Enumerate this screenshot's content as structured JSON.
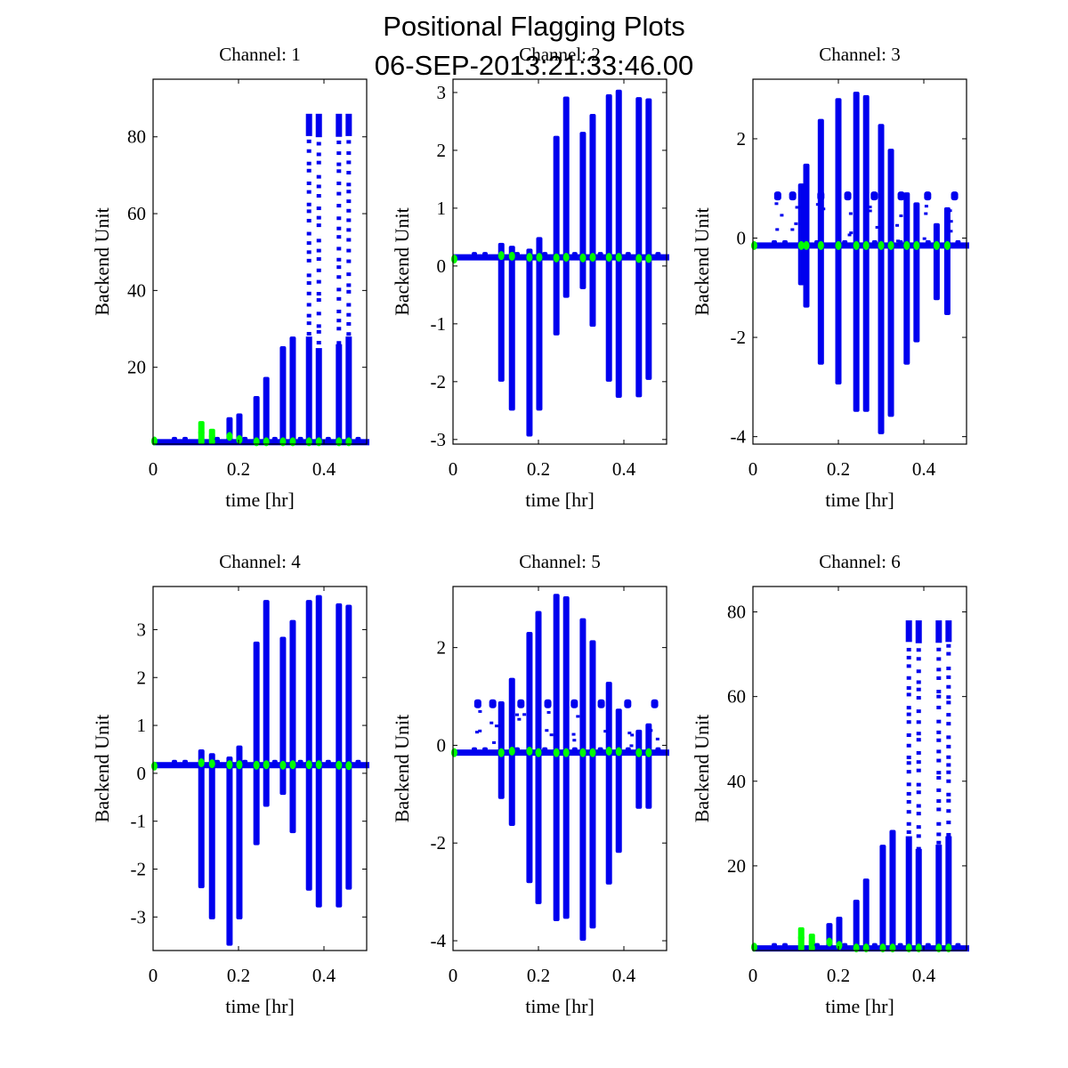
{
  "figure": {
    "title_line1": "Positional Flagging Plots",
    "title_line2": "06-SEP-2013:21:33:46.00"
  },
  "colors": {
    "data": "#0000ee",
    "flagged": "#00ff00",
    "axes": "#000000"
  },
  "chart_data": [
    {
      "type": "scatter",
      "title": "Channel: 1",
      "xlabel": "time [hr]",
      "ylabel": "Backend Unit",
      "xlim": [
        0,
        0.5
      ],
      "ylim": [
        0,
        95
      ],
      "xticks": [
        0,
        0.2,
        0.4
      ],
      "xtick_labels": [
        "0",
        "0.2",
        "0.4"
      ],
      "yticks": [
        20,
        40,
        60,
        80
      ],
      "ytick_labels": [
        "20",
        "40",
        "60",
        "80"
      ],
      "baseline": 0.5,
      "bursts": [
        {
          "t": 0.113,
          "min": 0,
          "max": 6,
          "flagged": true
        },
        {
          "t": 0.138,
          "min": 0,
          "max": 4,
          "flagged": true
        },
        {
          "t": 0.179,
          "min": 0,
          "max": 7
        },
        {
          "t": 0.202,
          "min": 0,
          "max": 8
        },
        {
          "t": 0.242,
          "min": 0,
          "max": 12.5
        },
        {
          "t": 0.265,
          "min": 0,
          "max": 17.5
        },
        {
          "t": 0.304,
          "min": 0,
          "max": 25.5
        },
        {
          "t": 0.327,
          "min": 0,
          "max": 28
        },
        {
          "t": 0.365,
          "min": 0,
          "max": 86,
          "sparse_from": 28
        },
        {
          "t": 0.388,
          "min": 0,
          "max": 86,
          "sparse_from": 25
        },
        {
          "t": 0.435,
          "min": 0,
          "max": 86,
          "sparse_from": 26
        },
        {
          "t": 0.458,
          "min": 0,
          "max": 86,
          "sparse_from": 28
        }
      ],
      "flag_markers": [
        {
          "t": 0.003,
          "y": 0.8
        },
        {
          "t": 0.113,
          "y": 3
        },
        {
          "t": 0.138,
          "y": 2
        },
        {
          "t": 0.179,
          "y": 2
        },
        {
          "t": 0.202,
          "y": 1.2
        },
        {
          "t": 0.242,
          "y": 0.6
        },
        {
          "t": 0.265,
          "y": 0.6
        },
        {
          "t": 0.304,
          "y": 0.6
        },
        {
          "t": 0.327,
          "y": 0.6
        },
        {
          "t": 0.365,
          "y": 0.6
        },
        {
          "t": 0.388,
          "y": 0.6
        },
        {
          "t": 0.435,
          "y": 0.6
        },
        {
          "t": 0.458,
          "y": 0.6
        }
      ]
    },
    {
      "type": "scatter",
      "title": "Channel: 2",
      "xlabel": "time [hr]",
      "ylabel": "Backend Unit",
      "xlim": [
        0,
        0.5
      ],
      "ylim": [
        -3.08,
        3.23
      ],
      "xticks": [
        0,
        0.2,
        0.4
      ],
      "xtick_labels": [
        "0",
        "0.2",
        "0.4"
      ],
      "yticks": [
        -3,
        -2,
        -1,
        0,
        1,
        2,
        3
      ],
      "ytick_labels": [
        "-3",
        "-2",
        "-1",
        "0",
        "1",
        "2",
        "3"
      ],
      "baseline": 0.15,
      "bursts": [
        {
          "t": 0.113,
          "min": -2.0,
          "max": 0.4
        },
        {
          "t": 0.138,
          "min": -2.5,
          "max": 0.35
        },
        {
          "t": 0.179,
          "min": -2.95,
          "max": 0.3
        },
        {
          "t": 0.202,
          "min": -2.5,
          "max": 0.5
        },
        {
          "t": 0.242,
          "min": -1.2,
          "max": 2.25
        },
        {
          "t": 0.265,
          "min": -0.55,
          "max": 2.93
        },
        {
          "t": 0.304,
          "min": -0.4,
          "max": 2.32
        },
        {
          "t": 0.327,
          "min": -1.05,
          "max": 2.63
        },
        {
          "t": 0.365,
          "min": -2.0,
          "max": 2.97
        },
        {
          "t": 0.388,
          "min": -2.28,
          "max": 3.05
        },
        {
          "t": 0.435,
          "min": -2.27,
          "max": 2.92
        },
        {
          "t": 0.458,
          "min": -1.97,
          "max": 2.9
        }
      ],
      "flag_markers": [
        {
          "t": 0.003,
          "y": 0.12
        },
        {
          "t": 0.113,
          "y": 0.18
        },
        {
          "t": 0.138,
          "y": 0.17
        },
        {
          "t": 0.179,
          "y": 0.15
        },
        {
          "t": 0.202,
          "y": 0.15
        },
        {
          "t": 0.242,
          "y": 0.14
        },
        {
          "t": 0.265,
          "y": 0.15
        },
        {
          "t": 0.304,
          "y": 0.14
        },
        {
          "t": 0.327,
          "y": 0.15
        },
        {
          "t": 0.365,
          "y": 0.15
        },
        {
          "t": 0.388,
          "y": 0.15
        },
        {
          "t": 0.435,
          "y": 0.13
        },
        {
          "t": 0.458,
          "y": 0.13
        }
      ]
    },
    {
      "type": "scatter",
      "title": "Channel: 3",
      "xlabel": "time [hr]",
      "ylabel": "Backend Unit",
      "xlim": [
        0,
        0.5
      ],
      "ylim": [
        -4.15,
        3.2
      ],
      "xticks": [
        0,
        0.2,
        0.4
      ],
      "xtick_labels": [
        "0",
        "0.2",
        "0.4"
      ],
      "yticks": [
        -4,
        -2,
        0,
        2
      ],
      "ytick_labels": [
        "-4",
        "-2",
        "0",
        "2"
      ],
      "baseline": -0.15,
      "side_clusters_y": 0.85,
      "side_cluster_times": [
        0.058,
        0.093,
        0.159,
        0.222,
        0.284,
        0.347,
        0.409,
        0.472
      ],
      "bursts": [
        {
          "t": 0.113,
          "min": -0.95,
          "max": 1.1
        },
        {
          "t": 0.125,
          "min": -1.4,
          "max": 1.5
        },
        {
          "t": 0.159,
          "min": -2.55,
          "max": 2.4
        },
        {
          "t": 0.2,
          "min": -2.95,
          "max": 2.82
        },
        {
          "t": 0.242,
          "min": -3.5,
          "max": 2.95
        },
        {
          "t": 0.265,
          "min": -3.5,
          "max": 2.88
        },
        {
          "t": 0.3,
          "min": -3.95,
          "max": 2.3
        },
        {
          "t": 0.323,
          "min": -3.6,
          "max": 1.8
        },
        {
          "t": 0.36,
          "min": -2.55,
          "max": 0.92
        },
        {
          "t": 0.383,
          "min": -2.1,
          "max": 0.72
        },
        {
          "t": 0.43,
          "min": -1.25,
          "max": 0.3
        },
        {
          "t": 0.455,
          "min": -1.55,
          "max": 0.62
        }
      ],
      "flag_markers": [
        {
          "t": 0.003,
          "y": -0.15
        },
        {
          "t": 0.113,
          "y": -0.15
        },
        {
          "t": 0.125,
          "y": -0.15
        },
        {
          "t": 0.159,
          "y": -0.15
        },
        {
          "t": 0.2,
          "y": -0.15
        },
        {
          "t": 0.242,
          "y": -0.15
        },
        {
          "t": 0.265,
          "y": -0.15
        },
        {
          "t": 0.3,
          "y": -0.15
        },
        {
          "t": 0.323,
          "y": -0.15
        },
        {
          "t": 0.36,
          "y": -0.15
        },
        {
          "t": 0.383,
          "y": -0.15
        },
        {
          "t": 0.43,
          "y": -0.15
        },
        {
          "t": 0.455,
          "y": -0.15
        }
      ]
    },
    {
      "type": "scatter",
      "title": "Channel: 4",
      "xlabel": "time [hr]",
      "ylabel": "Backend Unit",
      "xlim": [
        0,
        0.5
      ],
      "ylim": [
        -3.7,
        3.9
      ],
      "xticks": [
        0,
        0.2,
        0.4
      ],
      "xtick_labels": [
        "0",
        "0.2",
        "0.4"
      ],
      "yticks": [
        -3,
        -2,
        -1,
        0,
        1,
        2,
        3
      ],
      "ytick_labels": [
        "-3",
        "-2",
        "-1",
        "0",
        "1",
        "2",
        "3"
      ],
      "baseline": 0.17,
      "bursts": [
        {
          "t": 0.113,
          "min": -2.4,
          "max": 0.5
        },
        {
          "t": 0.138,
          "min": -3.05,
          "max": 0.42
        },
        {
          "t": 0.179,
          "min": -3.6,
          "max": 0.35
        },
        {
          "t": 0.202,
          "min": -3.05,
          "max": 0.58
        },
        {
          "t": 0.242,
          "min": -1.5,
          "max": 2.75
        },
        {
          "t": 0.265,
          "min": -0.7,
          "max": 3.62
        },
        {
          "t": 0.304,
          "min": -0.45,
          "max": 2.85
        },
        {
          "t": 0.327,
          "min": -1.25,
          "max": 3.2
        },
        {
          "t": 0.365,
          "min": -2.45,
          "max": 3.62
        },
        {
          "t": 0.388,
          "min": -2.8,
          "max": 3.72
        },
        {
          "t": 0.435,
          "min": -2.8,
          "max": 3.55
        },
        {
          "t": 0.458,
          "min": -2.43,
          "max": 3.52
        }
      ],
      "flag_markers": [
        {
          "t": 0.003,
          "y": 0.15
        },
        {
          "t": 0.113,
          "y": 0.22
        },
        {
          "t": 0.138,
          "y": 0.2
        },
        {
          "t": 0.179,
          "y": 0.18
        },
        {
          "t": 0.202,
          "y": 0.18
        },
        {
          "t": 0.242,
          "y": 0.17
        },
        {
          "t": 0.265,
          "y": 0.18
        },
        {
          "t": 0.304,
          "y": 0.17
        },
        {
          "t": 0.327,
          "y": 0.18
        },
        {
          "t": 0.365,
          "y": 0.18
        },
        {
          "t": 0.388,
          "y": 0.18
        },
        {
          "t": 0.435,
          "y": 0.17
        },
        {
          "t": 0.458,
          "y": 0.16
        }
      ]
    },
    {
      "type": "scatter",
      "title": "Channel: 5",
      "xlabel": "time [hr]",
      "ylabel": "Backend Unit",
      "xlim": [
        0,
        0.5
      ],
      "ylim": [
        -4.2,
        3.25
      ],
      "xticks": [
        0,
        0.2,
        0.4
      ],
      "xtick_labels": [
        "0",
        "0.2",
        "0.4"
      ],
      "yticks": [
        -4,
        -2,
        0,
        2
      ],
      "ytick_labels": [
        "-4",
        "-2",
        "0",
        "2"
      ],
      "baseline": -0.15,
      "side_clusters_y": 0.85,
      "side_cluster_times": [
        0.058,
        0.093,
        0.159,
        0.222,
        0.284,
        0.347,
        0.409,
        0.472
      ],
      "bursts": [
        {
          "t": 0.113,
          "min": -1.1,
          "max": 0.9
        },
        {
          "t": 0.138,
          "min": -1.65,
          "max": 1.38
        },
        {
          "t": 0.179,
          "min": -2.82,
          "max": 2.32
        },
        {
          "t": 0.2,
          "min": -3.25,
          "max": 2.75
        },
        {
          "t": 0.242,
          "min": -3.6,
          "max": 3.1
        },
        {
          "t": 0.265,
          "min": -3.55,
          "max": 3.05
        },
        {
          "t": 0.304,
          "min": -4.0,
          "max": 2.6
        },
        {
          "t": 0.327,
          "min": -3.75,
          "max": 2.15
        },
        {
          "t": 0.365,
          "min": -2.85,
          "max": 1.3
        },
        {
          "t": 0.388,
          "min": -2.2,
          "max": 0.75
        },
        {
          "t": 0.435,
          "min": -1.3,
          "max": 0.32
        },
        {
          "t": 0.458,
          "min": -1.3,
          "max": 0.45
        }
      ],
      "flag_markers": [
        {
          "t": 0.003,
          "y": -0.15
        },
        {
          "t": 0.113,
          "y": -0.15
        },
        {
          "t": 0.138,
          "y": -0.12
        },
        {
          "t": 0.179,
          "y": -0.12
        },
        {
          "t": 0.2,
          "y": -0.15
        },
        {
          "t": 0.242,
          "y": -0.15
        },
        {
          "t": 0.265,
          "y": -0.15
        },
        {
          "t": 0.304,
          "y": -0.15
        },
        {
          "t": 0.327,
          "y": -0.15
        },
        {
          "t": 0.365,
          "y": -0.12
        },
        {
          "t": 0.388,
          "y": -0.13
        },
        {
          "t": 0.435,
          "y": -0.15
        },
        {
          "t": 0.458,
          "y": -0.15
        }
      ]
    },
    {
      "type": "scatter",
      "title": "Channel: 6",
      "xlabel": "time [hr]",
      "ylabel": "Backend Unit",
      "xlim": [
        0,
        0.5
      ],
      "ylim": [
        0,
        86
      ],
      "xticks": [
        0,
        0.2,
        0.4
      ],
      "xtick_labels": [
        "0",
        "0.2",
        "0.4"
      ],
      "yticks": [
        20,
        40,
        60,
        80
      ],
      "ytick_labels": [
        "20",
        "40",
        "60",
        "80"
      ],
      "baseline": 0.5,
      "bursts": [
        {
          "t": 0.113,
          "min": 0,
          "max": 5.5,
          "flagged": true
        },
        {
          "t": 0.138,
          "min": 0,
          "max": 4,
          "flagged": true
        },
        {
          "t": 0.179,
          "min": 0,
          "max": 6.5
        },
        {
          "t": 0.202,
          "min": 0,
          "max": 8
        },
        {
          "t": 0.242,
          "min": 0,
          "max": 12
        },
        {
          "t": 0.265,
          "min": 0,
          "max": 17
        },
        {
          "t": 0.304,
          "min": 0,
          "max": 25
        },
        {
          "t": 0.327,
          "min": 0,
          "max": 28.5
        },
        {
          "t": 0.365,
          "min": 0,
          "max": 78,
          "sparse_from": 27
        },
        {
          "t": 0.388,
          "min": 0,
          "max": 78,
          "sparse_from": 24
        },
        {
          "t": 0.435,
          "min": 0,
          "max": 78,
          "sparse_from": 25
        },
        {
          "t": 0.458,
          "min": 0,
          "max": 78,
          "sparse_from": 27
        }
      ],
      "flag_markers": [
        {
          "t": 0.003,
          "y": 0.8
        },
        {
          "t": 0.113,
          "y": 3
        },
        {
          "t": 0.138,
          "y": 2
        },
        {
          "t": 0.179,
          "y": 2
        },
        {
          "t": 0.202,
          "y": 1.2
        },
        {
          "t": 0.242,
          "y": 0.6
        },
        {
          "t": 0.265,
          "y": 0.6
        },
        {
          "t": 0.304,
          "y": 0.6
        },
        {
          "t": 0.327,
          "y": 0.6
        },
        {
          "t": 0.365,
          "y": 0.6
        },
        {
          "t": 0.388,
          "y": 0.6
        },
        {
          "t": 0.435,
          "y": 0.6
        },
        {
          "t": 0.458,
          "y": 0.6
        }
      ]
    }
  ]
}
